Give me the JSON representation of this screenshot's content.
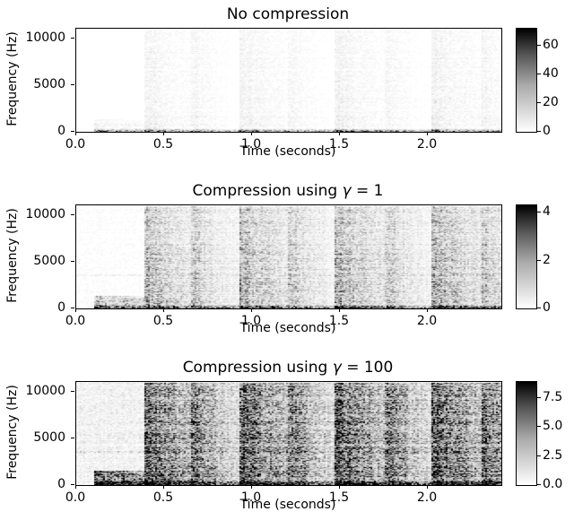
{
  "figure": {
    "background_color": "#ffffff",
    "foreground_color": "#000000",
    "colormap": "Greys (0 = white, max = black)"
  },
  "chart_data": [
    {
      "type": "heatmap",
      "subtype": "spectrogram",
      "title": "No compression",
      "title_parts": {
        "prefix": "No compression",
        "symbol": "",
        "suffix": ""
      },
      "xlabel": "Time (seconds)",
      "ylabel": "Frequency (Hz)",
      "x_range_seconds": [
        0,
        2.42
      ],
      "y_range_hz": [
        0,
        11025
      ],
      "xticks": [
        {
          "value": 0.0,
          "label": "0.0"
        },
        {
          "value": 0.5,
          "label": "0.5"
        },
        {
          "value": 1.0,
          "label": "1.0"
        },
        {
          "value": 1.5,
          "label": "1.5"
        },
        {
          "value": 2.0,
          "label": "2.0"
        }
      ],
      "yticks": [
        {
          "value": 0,
          "label": "0"
        },
        {
          "value": 5000,
          "label": "5000"
        },
        {
          "value": 10000,
          "label": "10000"
        }
      ],
      "colorbar": {
        "vmin": 0,
        "vmax": 72,
        "ticks": [
          {
            "value": 0,
            "label": "0"
          },
          {
            "value": 20,
            "label": "20"
          },
          {
            "value": 40,
            "label": "40"
          },
          {
            "value": 60,
            "label": "60"
          }
        ]
      },
      "events_seconds": [
        {
          "t": 0.1,
          "decay": 0.2,
          "amp": 0.9,
          "fmax": 1400
        },
        {
          "t": 0.25,
          "decay": 0.12,
          "amp": 0.5,
          "fmax": 1100
        },
        {
          "t": 0.38,
          "decay": 0.22,
          "amp": 1.0,
          "fmax": 11025
        },
        {
          "t": 0.65,
          "decay": 0.1,
          "amp": 0.45,
          "fmax": 11025
        },
        {
          "t": 0.92,
          "decay": 0.22,
          "amp": 1.0,
          "fmax": 11025
        },
        {
          "t": 1.2,
          "decay": 0.1,
          "amp": 0.45,
          "fmax": 11025
        },
        {
          "t": 1.47,
          "decay": 0.22,
          "amp": 1.0,
          "fmax": 11025
        },
        {
          "t": 1.75,
          "decay": 0.1,
          "amp": 0.45,
          "fmax": 11025
        },
        {
          "t": 2.02,
          "decay": 0.24,
          "amp": 1.0,
          "fmax": 11025
        },
        {
          "t": 2.3,
          "decay": 0.1,
          "amp": 0.5,
          "fmax": 11025
        }
      ],
      "render": {
        "seed": 11,
        "broadband_gain": 0.05,
        "background": 0.0,
        "lowband": {
          "start": 0.1,
          "fmax": 350,
          "amp": 0.65
        }
      }
    },
    {
      "type": "heatmap",
      "subtype": "spectrogram",
      "title": "Compression using γ = 1",
      "title_parts": {
        "prefix": "Compression using ",
        "symbol": "γ",
        "suffix": " = 1"
      },
      "xlabel": "Time (seconds)",
      "ylabel": "Frequency (Hz)",
      "x_range_seconds": [
        0,
        2.42
      ],
      "y_range_hz": [
        0,
        11025
      ],
      "xticks": [
        {
          "value": 0.0,
          "label": "0.0"
        },
        {
          "value": 0.5,
          "label": "0.5"
        },
        {
          "value": 1.0,
          "label": "1.0"
        },
        {
          "value": 1.5,
          "label": "1.5"
        },
        {
          "value": 2.0,
          "label": "2.0"
        }
      ],
      "yticks": [
        {
          "value": 0,
          "label": "0"
        },
        {
          "value": 5000,
          "label": "5000"
        },
        {
          "value": 10000,
          "label": "10000"
        }
      ],
      "colorbar": {
        "vmin": 0,
        "vmax": 4.3,
        "ticks": [
          {
            "value": 0,
            "label": "0"
          },
          {
            "value": 2,
            "label": "2"
          },
          {
            "value": 4,
            "label": "4"
          }
        ]
      },
      "events_seconds": [
        {
          "t": 0.1,
          "decay": 0.2,
          "amp": 0.9,
          "fmax": 1400
        },
        {
          "t": 0.25,
          "decay": 0.12,
          "amp": 0.5,
          "fmax": 1100
        },
        {
          "t": 0.38,
          "decay": 0.22,
          "amp": 1.0,
          "fmax": 11025
        },
        {
          "t": 0.65,
          "decay": 0.1,
          "amp": 0.45,
          "fmax": 11025
        },
        {
          "t": 0.92,
          "decay": 0.22,
          "amp": 1.0,
          "fmax": 11025
        },
        {
          "t": 1.2,
          "decay": 0.1,
          "amp": 0.45,
          "fmax": 11025
        },
        {
          "t": 1.47,
          "decay": 0.22,
          "amp": 1.0,
          "fmax": 11025
        },
        {
          "t": 1.75,
          "decay": 0.1,
          "amp": 0.45,
          "fmax": 11025
        },
        {
          "t": 2.02,
          "decay": 0.24,
          "amp": 1.0,
          "fmax": 11025
        },
        {
          "t": 2.3,
          "decay": 0.1,
          "amp": 0.5,
          "fmax": 11025
        }
      ],
      "render": {
        "seed": 22,
        "broadband_gain": 0.3,
        "background": 0.05,
        "hline_hz": 3600,
        "lowband": {
          "start": 0.1,
          "fmax": 450,
          "amp": 1.0
        }
      }
    },
    {
      "type": "heatmap",
      "subtype": "spectrogram",
      "title": "Compression using γ = 100",
      "title_parts": {
        "prefix": "Compression using ",
        "symbol": "γ",
        "suffix": " = 100"
      },
      "xlabel": "Time (seconds)",
      "ylabel": "Frequency (Hz)",
      "x_range_seconds": [
        0,
        2.42
      ],
      "y_range_hz": [
        0,
        11025
      ],
      "xticks": [
        {
          "value": 0.0,
          "label": "0.0"
        },
        {
          "value": 0.5,
          "label": "0.5"
        },
        {
          "value": 1.0,
          "label": "1.0"
        },
        {
          "value": 1.5,
          "label": "1.5"
        },
        {
          "value": 2.0,
          "label": "2.0"
        }
      ],
      "yticks": [
        {
          "value": 0,
          "label": "0"
        },
        {
          "value": 5000,
          "label": "5000"
        },
        {
          "value": 10000,
          "label": "10000"
        }
      ],
      "colorbar": {
        "vmin": 0,
        "vmax": 8.9,
        "ticks": [
          {
            "value": 0.0,
            "label": "0.0"
          },
          {
            "value": 2.5,
            "label": "2.5"
          },
          {
            "value": 5.0,
            "label": "5.0"
          },
          {
            "value": 7.5,
            "label": "7.5"
          }
        ]
      },
      "events_seconds": [
        {
          "t": 0.1,
          "decay": 0.2,
          "amp": 0.9,
          "fmax": 1600
        },
        {
          "t": 0.25,
          "decay": 0.12,
          "amp": 0.55,
          "fmax": 1300
        },
        {
          "t": 0.38,
          "decay": 0.22,
          "amp": 1.0,
          "fmax": 11025
        },
        {
          "t": 0.65,
          "decay": 0.1,
          "amp": 0.5,
          "fmax": 11025
        },
        {
          "t": 0.92,
          "decay": 0.22,
          "amp": 1.0,
          "fmax": 11025
        },
        {
          "t": 1.2,
          "decay": 0.1,
          "amp": 0.5,
          "fmax": 11025
        },
        {
          "t": 1.47,
          "decay": 0.22,
          "amp": 1.0,
          "fmax": 11025
        },
        {
          "t": 1.75,
          "decay": 0.1,
          "amp": 0.5,
          "fmax": 11025
        },
        {
          "t": 2.02,
          "decay": 0.24,
          "amp": 1.0,
          "fmax": 11025
        },
        {
          "t": 2.3,
          "decay": 0.12,
          "amp": 0.55,
          "fmax": 11025
        }
      ],
      "render": {
        "seed": 33,
        "broadband_gain": 0.72,
        "background": 0.08,
        "hline_hz": 3600,
        "lowband": {
          "start": 0.1,
          "fmax": 600,
          "amp": 1.3
        }
      }
    }
  ]
}
